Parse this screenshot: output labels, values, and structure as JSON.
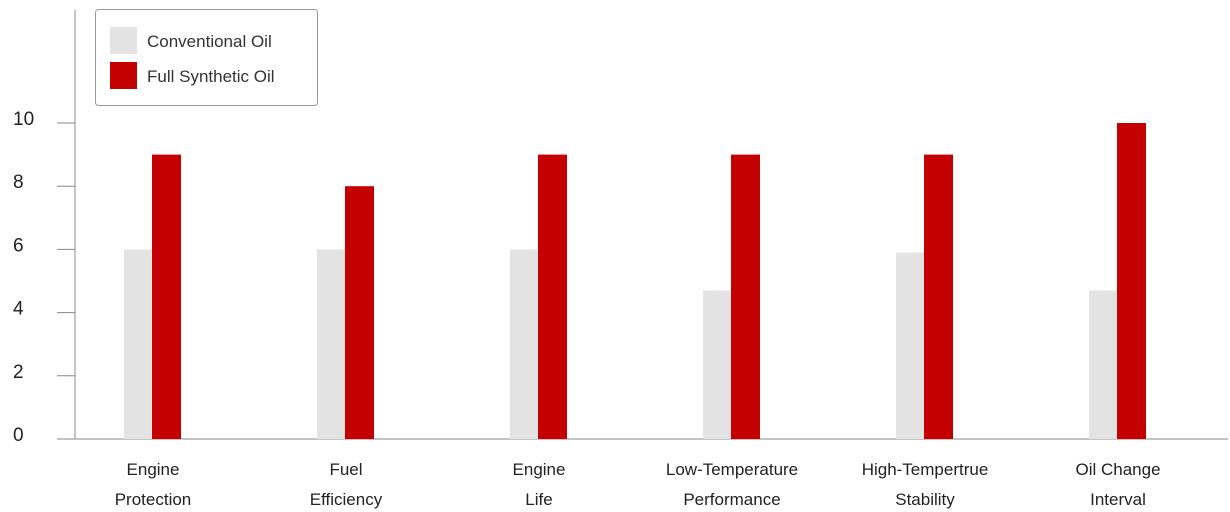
{
  "chart_data": {
    "type": "bar",
    "categories": [
      [
        "Engine",
        "Protection"
      ],
      [
        "Fuel",
        "Efficiency"
      ],
      [
        "Engine",
        "Life"
      ],
      [
        "Low-Temperature",
        "Performance"
      ],
      [
        "High-Tempertrue",
        "Stability"
      ],
      [
        "Oil Change",
        "Interval"
      ]
    ],
    "series": [
      {
        "name": "Conventional Oil",
        "color": "#e3e3e3",
        "values": [
          6,
          6,
          6,
          4.7,
          5.9,
          4.7
        ]
      },
      {
        "name": "Full Synthetic Oil",
        "color": "#c40000",
        "values": [
          9,
          8,
          9,
          9,
          9,
          10
        ]
      }
    ],
    "ylim": [
      0,
      10
    ],
    "yticks": [
      0,
      2,
      4,
      6,
      8,
      10
    ],
    "legend": "top-left",
    "grid": false
  }
}
